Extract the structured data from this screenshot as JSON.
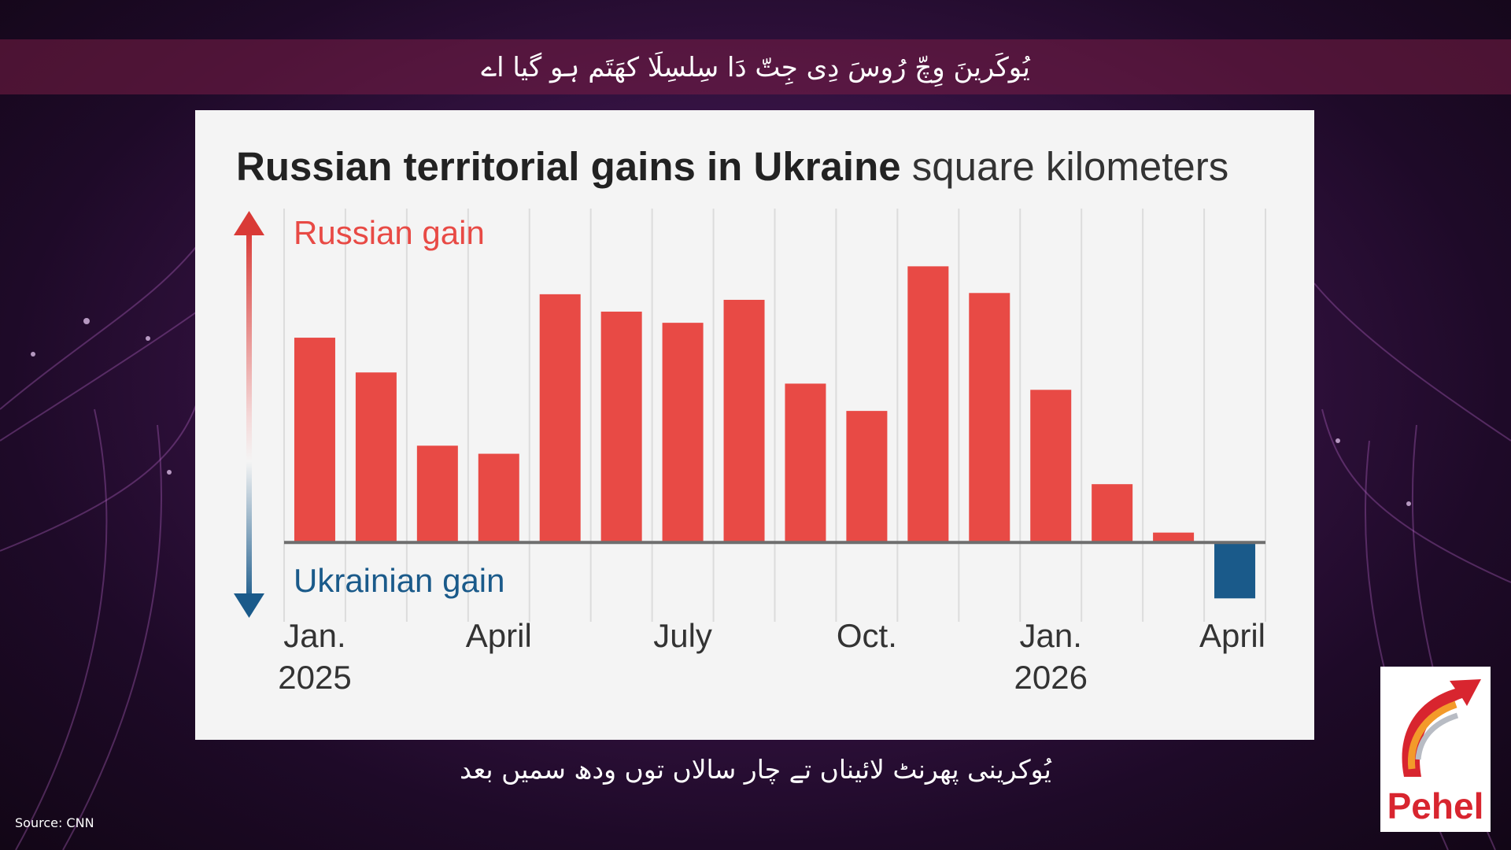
{
  "headline": "یُوکَرینَ وِچّ رُوسَ دِی جِتّ دَا سِلسِلَا کھَتَم ہو گیا اے",
  "caption": "یُوکرینی پھرنٹ لائیناں تے چار سالاں توں ودھ سمیں بعد",
  "source": "Source: CNN",
  "logo": {
    "text": "Pehel",
    "brand_color": "#d8252f"
  },
  "colors": {
    "russian": "#e84a45",
    "ukrainian": "#1a5a8a"
  },
  "chart_data": {
    "type": "bar",
    "title": "Russian territorial gains in Ukraine",
    "subtitle": "square kilometers",
    "legend": {
      "positive": "Russian gain",
      "negative": "Ukrainian gain"
    },
    "categories": [
      "2025-01",
      "2025-02",
      "2025-03",
      "2025-04",
      "2025-05",
      "2025-06",
      "2025-07",
      "2025-08",
      "2025-09",
      "2025-10",
      "2025-11",
      "2025-12",
      "2026-01",
      "2026-02",
      "2026-03",
      "2026-04"
    ],
    "values": [
      330,
      274,
      156,
      143,
      400,
      372,
      354,
      391,
      256,
      212,
      445,
      402,
      246,
      94,
      16,
      -90
    ],
    "ylim": [
      -115,
      500
    ],
    "grid": "vertical",
    "x_tick_labels": [
      {
        "category": "2025-01",
        "lines": [
          "Jan.",
          "2025"
        ]
      },
      {
        "category": "2025-04",
        "lines": [
          "April"
        ]
      },
      {
        "category": "2025-07",
        "lines": [
          "July"
        ]
      },
      {
        "category": "2025-10",
        "lines": [
          "Oct."
        ]
      },
      {
        "category": "2026-01",
        "lines": [
          "Jan.",
          "2026"
        ]
      },
      {
        "category": "2026-04",
        "lines": [
          "April"
        ]
      }
    ]
  }
}
